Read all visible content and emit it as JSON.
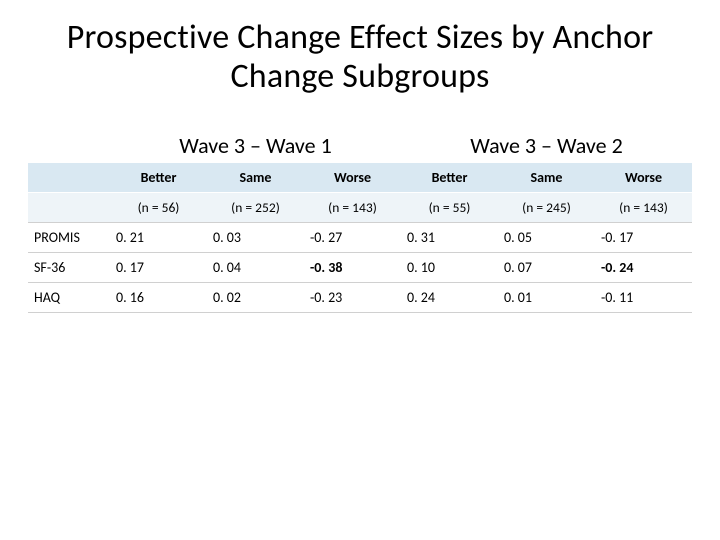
{
  "title": "Prospective Change Effect Sizes by Anchor Change Subgroups",
  "wave_headers": {
    "left": "Wave 3 – Wave 1",
    "right": "Wave 3 – Wave 2"
  },
  "table": {
    "type": "table",
    "columns": [
      "Better",
      "Same",
      "Worse",
      "Better",
      "Same",
      "Worse"
    ],
    "n_labels": [
      "(n = 56)",
      "(n = 252)",
      "(n = 143)",
      "(n = 55)",
      "(n = 245)",
      "(n = 143)"
    ],
    "rows": [
      {
        "label": "PROMIS",
        "cells": [
          "0. 21",
          "0. 03",
          "-0. 27",
          "0. 31",
          "0. 05",
          "-0. 17"
        ],
        "bold": [
          false,
          false,
          false,
          false,
          false,
          false
        ]
      },
      {
        "label": "SF-36",
        "cells": [
          "0. 17",
          "0. 04",
          "-0. 38",
          "0. 10",
          "0. 07",
          "-0. 24"
        ],
        "bold": [
          false,
          false,
          true,
          false,
          false,
          true
        ]
      },
      {
        "label": "HAQ",
        "cells": [
          "0. 16",
          "0. 02",
          "-0. 23",
          "0. 24",
          "0. 01",
          "-0. 11"
        ],
        "bold": [
          false,
          false,
          false,
          false,
          false,
          false
        ]
      }
    ],
    "header_bg": "#d9e8f2",
    "subheader_bg": "#eef4f8",
    "border_color": "#d0d0d0",
    "title_fontsize": 34,
    "wave_header_fontsize": 22,
    "cell_fontsize": 14
  }
}
